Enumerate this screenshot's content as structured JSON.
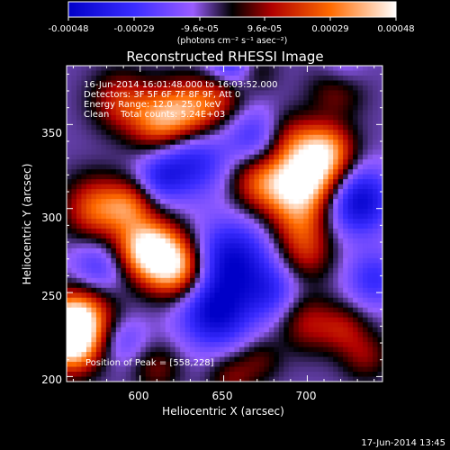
{
  "chart_data": {
    "type": "heatmap",
    "title": "Reconstructed RHESSI Image",
    "xlabel": "Heliocentric X (arcsec)",
    "ylabel": "Heliocentric Y (arcsec)",
    "xlim": [
      556,
      745
    ],
    "ylim": [
      197,
      385
    ],
    "xticks": [
      600,
      650,
      700
    ],
    "yticks": [
      200,
      250,
      300,
      350
    ],
    "annotations": [
      "16-Jun-2014 16:01:48.000 to 16:03:52.000",
      "Detectors: 3F 5F 6F 7F 8F 9F, Att 0",
      "Energy Range: 12.0 - 25.0 keV",
      "Clean    Total counts: 5.24E+03"
    ],
    "peak_label": "Position of Peak = [558,228]",
    "peak": [
      558,
      228
    ],
    "colorbar": {
      "ticks": [
        "-0.00048",
        "-0.00029",
        "-9.6e-05",
        "9.6e-05",
        "0.00029",
        "0.00048"
      ],
      "unit_label": "(photons cm⁻² s⁻¹ asec⁻²)",
      "range": [
        -0.00048,
        0.00048
      ]
    },
    "blobs": [
      {
        "x": 556,
        "y": 228,
        "amp": 0.00048,
        "s": 12
      },
      {
        "x": 566,
        "y": 236,
        "amp": 0.00036,
        "s": 13
      },
      {
        "x": 560,
        "y": 215,
        "amp": 0.0003,
        "s": 11
      },
      {
        "x": 612,
        "y": 272,
        "amp": 0.00046,
        "s": 13
      },
      {
        "x": 600,
        "y": 278,
        "amp": 0.0003,
        "s": 12
      },
      {
        "x": 624,
        "y": 262,
        "amp": 0.0003,
        "s": 12
      },
      {
        "x": 574,
        "y": 300,
        "amp": 0.00034,
        "s": 13
      },
      {
        "x": 594,
        "y": 302,
        "amp": 0.00026,
        "s": 10
      },
      {
        "x": 612,
        "y": 352,
        "amp": 0.0004,
        "s": 13
      },
      {
        "x": 632,
        "y": 358,
        "amp": 0.00036,
        "s": 13
      },
      {
        "x": 588,
        "y": 364,
        "amp": 0.00024,
        "s": 12
      },
      {
        "x": 650,
        "y": 370,
        "amp": 0.00022,
        "s": 10
      },
      {
        "x": 690,
        "y": 340,
        "amp": 0.00022,
        "s": 12
      },
      {
        "x": 705,
        "y": 320,
        "amp": 0.00042,
        "s": 14
      },
      {
        "x": 690,
        "y": 312,
        "amp": 0.00034,
        "s": 13
      },
      {
        "x": 712,
        "y": 336,
        "amp": 0.0003,
        "s": 11
      },
      {
        "x": 670,
        "y": 316,
        "amp": 0.00026,
        "s": 12
      },
      {
        "x": 696,
        "y": 290,
        "amp": 0.00024,
        "s": 12
      },
      {
        "x": 718,
        "y": 372,
        "amp": 0.00022,
        "s": 11
      },
      {
        "x": 700,
        "y": 272,
        "amp": 0.00018,
        "s": 11
      },
      {
        "x": 700,
        "y": 232,
        "amp": 0.0002,
        "s": 12
      },
      {
        "x": 722,
        "y": 228,
        "amp": 0.00018,
        "s": 10
      },
      {
        "x": 735,
        "y": 212,
        "amp": 0.00016,
        "s": 10
      },
      {
        "x": 655,
        "y": 200,
        "amp": 0.00016,
        "s": 10
      },
      {
        "x": 610,
        "y": 205,
        "amp": 0.00015,
        "s": 10
      },
      {
        "x": 668,
        "y": 382,
        "amp": 0.00016,
        "s": 9
      },
      {
        "x": 672,
        "y": 210,
        "amp": 0.00012,
        "s": 9
      },
      {
        "x": 630,
        "y": 330,
        "amp": -0.0003,
        "s": 16
      },
      {
        "x": 655,
        "y": 270,
        "amp": -0.00036,
        "s": 16
      },
      {
        "x": 645,
        "y": 238,
        "amp": -0.00038,
        "s": 15
      },
      {
        "x": 730,
        "y": 305,
        "amp": -0.0004,
        "s": 14
      },
      {
        "x": 655,
        "y": 383,
        "amp": -0.0003,
        "s": 11
      },
      {
        "x": 575,
        "y": 265,
        "amp": -0.0002,
        "s": 12
      },
      {
        "x": 670,
        "y": 342,
        "amp": -0.00022,
        "s": 12
      },
      {
        "x": 740,
        "y": 258,
        "amp": -0.00022,
        "s": 12
      },
      {
        "x": 612,
        "y": 318,
        "amp": -0.00018,
        "s": 10
      },
      {
        "x": 678,
        "y": 250,
        "amp": -0.0002,
        "s": 12
      },
      {
        "x": 720,
        "y": 380,
        "amp": -0.00016,
        "s": 10
      },
      {
        "x": 590,
        "y": 222,
        "amp": -0.00014,
        "s": 10
      }
    ]
  },
  "footer_date": "17-Jun-2014 13:45"
}
